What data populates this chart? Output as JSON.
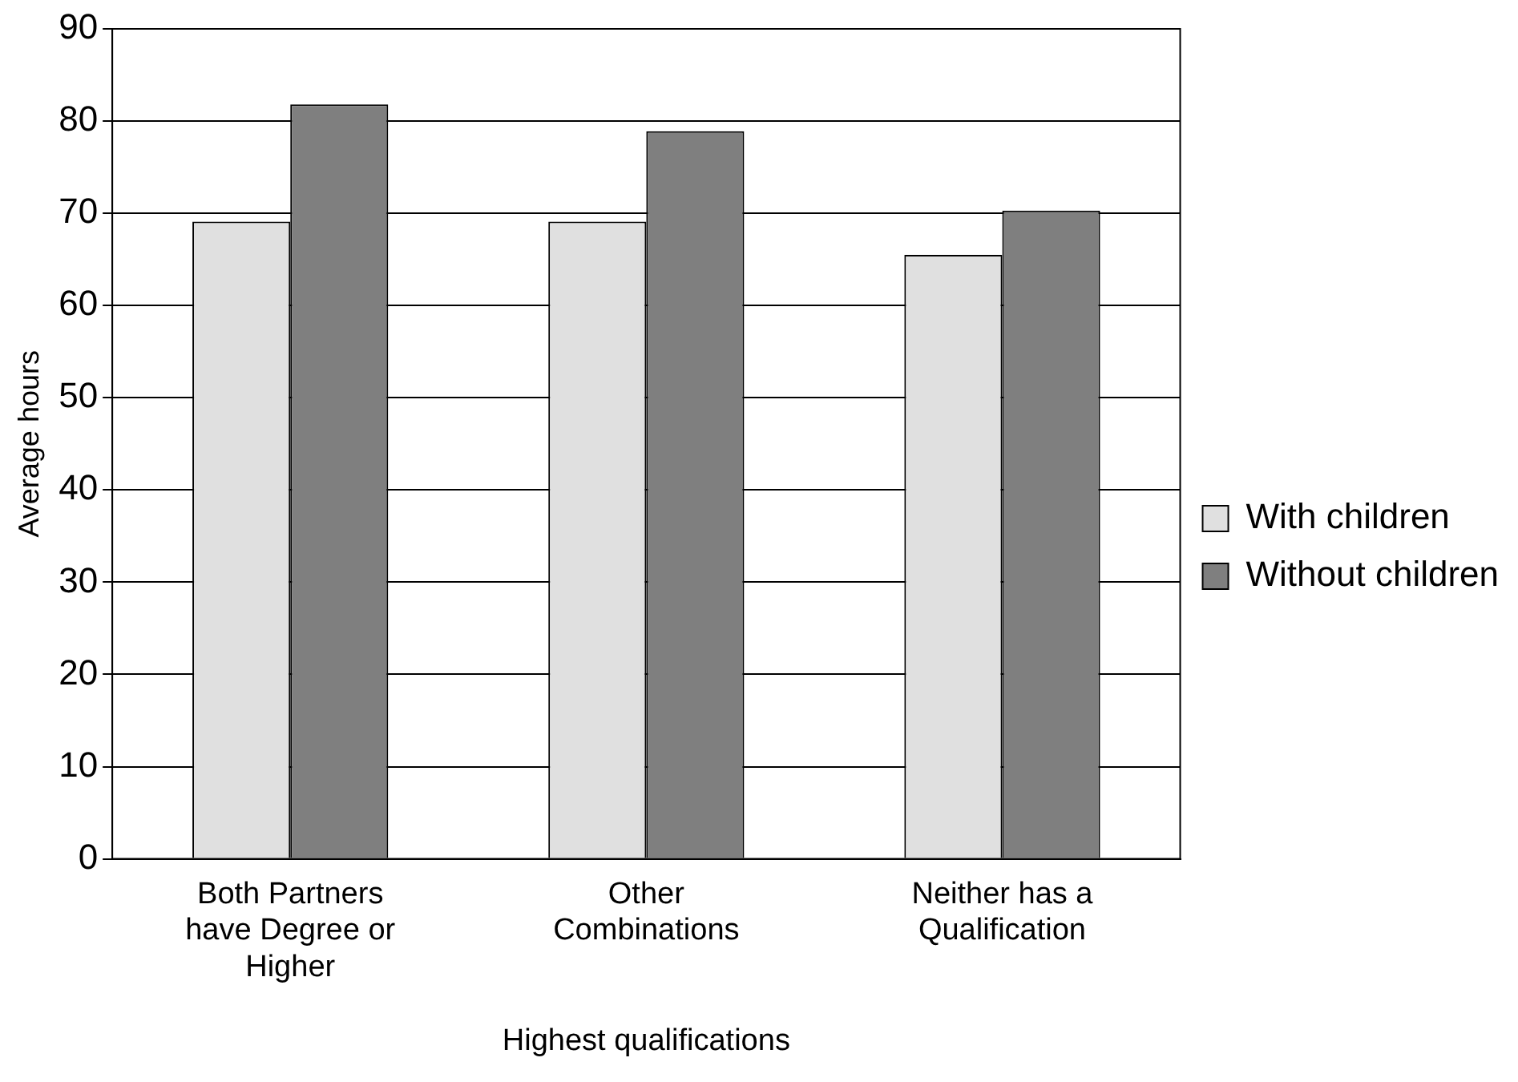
{
  "chart_data": {
    "type": "bar",
    "xlabel": "Highest qualifications",
    "ylabel": "Average hours",
    "categories": [
      "Both Partners have Degree or Higher",
      "Other Combinations",
      "Neither has a Qualification"
    ],
    "series": [
      {
        "name": "With children",
        "color": "#e0e0e0",
        "values": [
          69.1,
          69.1,
          65.5
        ]
      },
      {
        "name": "Without children",
        "color": "#7f7f7f",
        "values": [
          81.8,
          78.9,
          70.3
        ]
      }
    ],
    "ylim": [
      0,
      90
    ],
    "yticks": [
      0,
      10,
      20,
      30,
      40,
      50,
      60,
      70,
      80,
      90
    ],
    "grid": "y",
    "legend": "right"
  }
}
